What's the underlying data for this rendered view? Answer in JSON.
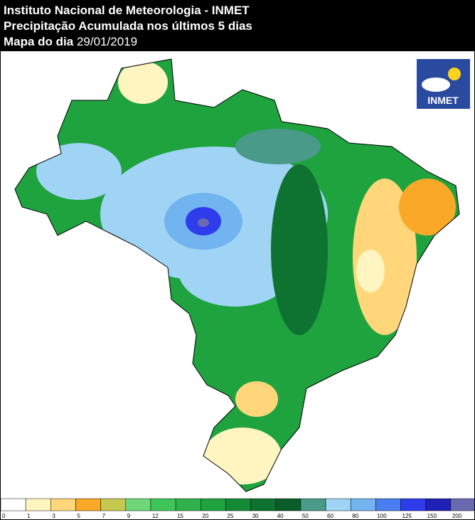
{
  "header": {
    "line1": "Instituto Nacional de Meteorologia - INMET",
    "line2": "Precipitação Acumulada nos últimos 5 dias",
    "line3_label": "Mapa do dia",
    "line3_date": "29/01/2019"
  },
  "logo": "INMET",
  "legend": {
    "labels": [
      "0",
      "1",
      "3",
      "5",
      "7",
      "9",
      "12",
      "15",
      "20",
      "25",
      "30",
      "40",
      "50",
      "60",
      "80",
      "100",
      "125",
      "150",
      "200"
    ],
    "colors": [
      "#ffffff",
      "#fff5c0",
      "#ffd77a",
      "#f9a827",
      "#c7c94e",
      "#6fd67a",
      "#3ec65a",
      "#2fb24c",
      "#1fa33f",
      "#148a36",
      "#0e7230",
      "#0a5c28",
      "#4a9a8a",
      "#9fd4f5",
      "#72b4f0",
      "#4a7ef0",
      "#2e3cec",
      "#2020b8",
      "#6a6ab0"
    ]
  }
}
